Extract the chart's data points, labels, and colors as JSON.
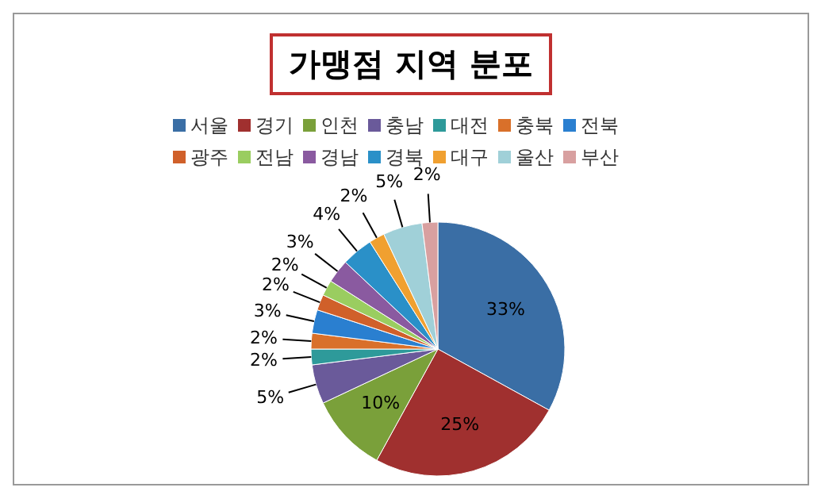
{
  "chart_data": {
    "type": "pie",
    "title": "가맹점 지역 분포",
    "categories": [
      "서울",
      "경기",
      "인천",
      "충남",
      "대전",
      "충북",
      "전북",
      "광주",
      "전남",
      "경남",
      "경북",
      "대구",
      "울산",
      "부산"
    ],
    "values": [
      33,
      25,
      10,
      5,
      2,
      2,
      3,
      2,
      2,
      3,
      4,
      2,
      5,
      2
    ],
    "value_labels": [
      "33%",
      "25%",
      "10%",
      "5%",
      "2%",
      "2%",
      "3%",
      "2%",
      "2%",
      "3%",
      "4%",
      "2%",
      "5%",
      "2%"
    ],
    "colors": [
      "#3a6ea5",
      "#a0302f",
      "#7aa03a",
      "#6a5a9a",
      "#2e9a9a",
      "#d9702a",
      "#2a7fd0",
      "#d0602a",
      "#9acd60",
      "#8a5aa0",
      "#2a90c8",
      "#f0a030",
      "#a0d0d8",
      "#d8a0a0"
    ],
    "legend": "top"
  }
}
